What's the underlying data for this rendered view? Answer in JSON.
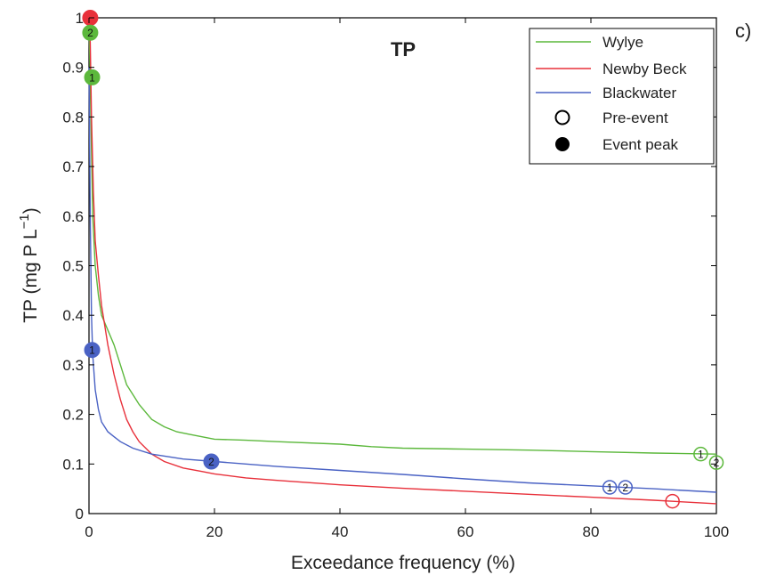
{
  "chart_data": {
    "type": "line",
    "title": "TP",
    "panel_label": "c)",
    "xlabel": "Exceedance frequency (%)",
    "ylabel": "TP (mg P L",
    "ylabel_sup": "−1",
    "ylabel_close": ")",
    "xlim": [
      0,
      100
    ],
    "ylim": [
      0,
      1
    ],
    "xticks": [
      0,
      20,
      40,
      60,
      80,
      100
    ],
    "xtick_labels": [
      "0",
      "20",
      "40",
      "60",
      "80",
      "100"
    ],
    "yticks": [
      0,
      0.1,
      0.2,
      0.3,
      0.4,
      0.5,
      0.6,
      0.7,
      0.8,
      0.9,
      1
    ],
    "ytick_labels": [
      "0",
      "0.1",
      "0.2",
      "0.3",
      "0.4",
      "0.5",
      "0.6",
      "0.7",
      "0.8",
      "0.9",
      "1"
    ],
    "grid": false,
    "legend_position": "top-right",
    "series": [
      {
        "name": "Wylye",
        "color": "#5cb83c",
        "x": [
          0,
          0.3,
          0.6,
          1,
          1.5,
          2,
          3,
          4,
          5,
          6,
          7,
          8,
          9,
          10,
          12,
          14,
          16,
          18,
          20,
          25,
          30,
          40,
          45,
          50,
          60,
          70,
          80,
          90,
          100
        ],
        "y": [
          1,
          0.8,
          0.6,
          0.5,
          0.44,
          0.4,
          0.37,
          0.34,
          0.3,
          0.26,
          0.24,
          0.22,
          0.205,
          0.19,
          0.175,
          0.165,
          0.16,
          0.155,
          0.15,
          0.148,
          0.145,
          0.14,
          0.135,
          0.132,
          0.13,
          0.128,
          0.125,
          0.122,
          0.12
        ]
      },
      {
        "name": "Newby Beck",
        "color": "#e8303a",
        "x": [
          0,
          0.2,
          0.4,
          0.7,
          1,
          1.5,
          2,
          3,
          4,
          5,
          6,
          7,
          8,
          10,
          12,
          15,
          18,
          20,
          25,
          30,
          40,
          50,
          60,
          70,
          80,
          90,
          100
        ],
        "y": [
          1,
          0.95,
          0.8,
          0.65,
          0.55,
          0.48,
          0.42,
          0.34,
          0.28,
          0.23,
          0.19,
          0.165,
          0.145,
          0.12,
          0.105,
          0.092,
          0.085,
          0.08,
          0.072,
          0.067,
          0.058,
          0.051,
          0.045,
          0.039,
          0.033,
          0.027,
          0.02
        ]
      },
      {
        "name": "Blackwater",
        "color": "#4a62c4",
        "x": [
          0,
          0.2,
          0.4,
          0.6,
          1,
          1.5,
          2,
          3,
          4,
          5,
          7,
          10,
          15,
          20,
          30,
          40,
          50,
          60,
          70,
          80,
          90,
          100
        ],
        "y": [
          0.9,
          0.6,
          0.4,
          0.32,
          0.25,
          0.21,
          0.185,
          0.165,
          0.155,
          0.145,
          0.132,
          0.12,
          0.11,
          0.105,
          0.095,
          0.087,
          0.079,
          0.07,
          0.062,
          0.056,
          0.05,
          0.043
        ]
      }
    ],
    "legend": [
      {
        "label": "Wylye",
        "kind": "line",
        "color": "#5cb83c"
      },
      {
        "label": "Newby Beck",
        "kind": "line",
        "color": "#e8303a"
      },
      {
        "label": "Blackwater",
        "kind": "line",
        "color": "#4a62c4"
      },
      {
        "label": "Pre-event",
        "kind": "open-circle",
        "color": "#000000"
      },
      {
        "label": "Event peak",
        "kind": "filled-circle",
        "color": "#000000"
      }
    ],
    "markers": [
      {
        "series": "Newby Beck",
        "type": "event-peak",
        "label": "",
        "x": 0.2,
        "y": 1.0,
        "color": "#e8303a"
      },
      {
        "series": "Wylye",
        "type": "event-peak",
        "label": "2",
        "x": 0.2,
        "y": 0.97,
        "color": "#5cb83c"
      },
      {
        "series": "Wylye",
        "type": "event-peak",
        "label": "1",
        "x": 0.5,
        "y": 0.88,
        "color": "#5cb83c"
      },
      {
        "series": "Blackwater",
        "type": "event-peak",
        "label": "1",
        "x": 0.5,
        "y": 0.33,
        "color": "#4a62c4"
      },
      {
        "series": "Blackwater",
        "type": "event-peak",
        "label": "2",
        "x": 19.5,
        "y": 0.105,
        "color": "#4a62c4"
      },
      {
        "series": "Blackwater",
        "type": "pre-event",
        "label": "1",
        "x": 83,
        "y": 0.053,
        "color": "#4a62c4"
      },
      {
        "series": "Blackwater",
        "type": "pre-event",
        "label": "2",
        "x": 85.5,
        "y": 0.053,
        "color": "#4a62c4"
      },
      {
        "series": "Newby Beck",
        "type": "pre-event",
        "label": "",
        "x": 93,
        "y": 0.025,
        "color": "#e8303a"
      },
      {
        "series": "Wylye",
        "type": "pre-event",
        "label": "1",
        "x": 97.5,
        "y": 0.12,
        "color": "#5cb83c"
      },
      {
        "series": "Wylye",
        "type": "pre-event",
        "label": "2",
        "x": 100,
        "y": 0.103,
        "color": "#5cb83c"
      }
    ]
  }
}
